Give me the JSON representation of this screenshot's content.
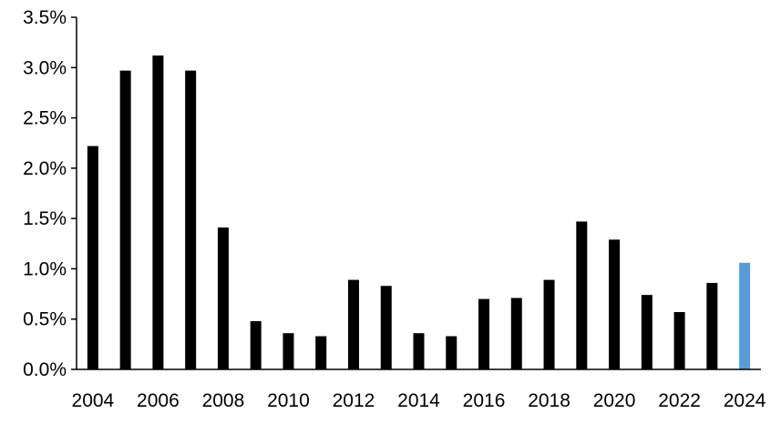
{
  "chart_data": {
    "type": "bar",
    "title": "",
    "xlabel": "",
    "ylabel": "",
    "ylim": [
      0,
      3.5
    ],
    "y_unit": "%",
    "yticks": [
      "0.0%",
      "0.5%",
      "1.0%",
      "1.5%",
      "2.0%",
      "2.5%",
      "3.0%",
      "3.5%"
    ],
    "xtick_labels": [
      "2004",
      "2006",
      "2008",
      "2010",
      "2012",
      "2014",
      "2016",
      "2018",
      "2020",
      "2022",
      "2024"
    ],
    "grid": false,
    "categories": [
      "2004",
      "2005",
      "2006",
      "2007",
      "2008",
      "2009",
      "2010",
      "2011",
      "2012",
      "2013",
      "2014",
      "2015",
      "2016",
      "2017",
      "2018",
      "2019",
      "2020",
      "2021",
      "2022",
      "2023",
      "2024"
    ],
    "values": [
      2.22,
      2.97,
      3.12,
      2.97,
      1.41,
      0.48,
      0.36,
      0.33,
      0.89,
      0.83,
      0.36,
      0.33,
      0.7,
      0.71,
      0.89,
      1.47,
      1.29,
      0.74,
      0.57,
      0.86,
      1.06
    ],
    "colors": {
      "default": "#000000",
      "highlight": "#5B9BD5"
    },
    "highlight_category": "2024"
  }
}
